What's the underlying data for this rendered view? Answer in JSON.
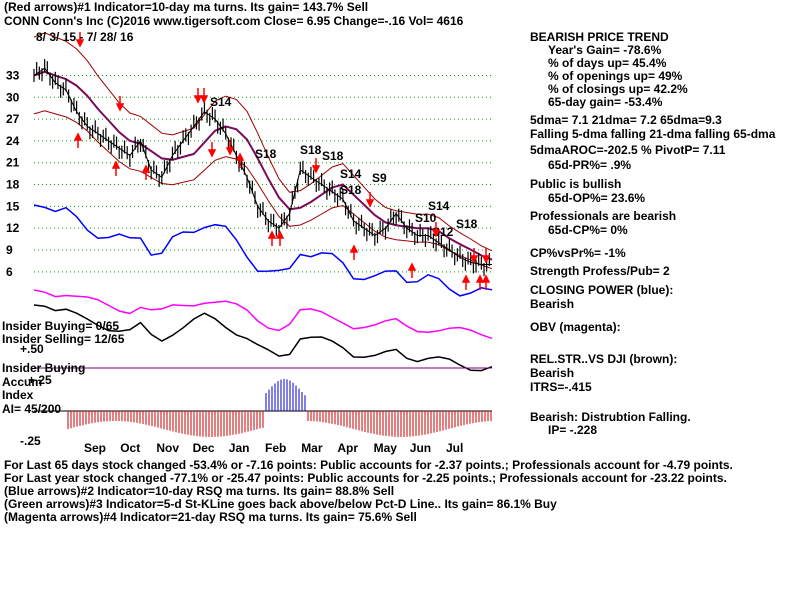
{
  "header": {
    "line1": "(Red arrows)#1 Indicator=10-day ma turns. Its gain= 143.7% Sell",
    "line2": "CONN   Conn's Inc  (C)2016 www.tigersoft.com      Close=  6.95  Change=-.16 Vol= 4616",
    "date_range": "8/ 3/ 15 - 7/ 28/ 16"
  },
  "side_panel": {
    "trend_title": "BEARISH PRICE TREND",
    "trend_stats": [
      "Year's Gain= -78.6%",
      "% of days up= 45.4%",
      "% of openings up= 49%",
      "% of closings up= 42.2%",
      "65-day gain= -53.4%"
    ],
    "ma_line": "5dma= 7.1 21dma= 7.2 65dma=9.3",
    "falling_line": "Falling 5-dma falling 21-dma falling 65-dma",
    "aroc_line": "5dmaAROC=-202.5 %  PivotP= 7.11",
    "pr_line": "65d-PR%= .9%",
    "public_title": "Public is bullish",
    "public_op": "65d-OP%= 23.6%",
    "prof_title": "Professionals are bearish",
    "prof_cp": "65d-CP%= 0%",
    "cpvspr": "CP%vsPr%= -1%",
    "strength": "Strength Profess/Pub= 2",
    "closing_power": "CLOSING POWER (blue):",
    "closing_power_val": "Bearish",
    "obv": "OBV (magenta):",
    "relstr": "REL.STR..VS DJI (brown):",
    "relstr_val": "Bearish",
    "itrs": "ITRS=-.415",
    "accum": "Bearish: Distrubtion Falling.",
    "ip": "IP= -.228"
  },
  "insider": {
    "buying": "Insider Buying= 0/65",
    "selling": "Insider Selling= 12/65",
    "buying_label": "Insider Buying",
    "accum_label1": "Accum",
    "accum_label2": "Index",
    "ai": "AI= 45/200",
    "scale_top": "+.50",
    "scale_mid": "+.25",
    "scale_bot": "-.25"
  },
  "footer": [
    "For Last 65 days stock changed -53.4% or -7.16 points:  Public accounts for -2.37 points.;  Professionals account for -4.79 points.",
    "For Last year stock changed -77.1% or -25.47 points:  Public accounts for -2.25 points.;  Professionals account for -23.22 points.",
    "(Blue arrows)#2 Indicator=10-day RSQ ma turns. Its gain= 88.8% Sell",
    "(Green arrows)#3 Indicator=5-d St-KLine goes back above/below Pct-D Line.. Its gain= 86.1% Buy",
    "(Magenta arrows)#4 Indicator=21-day RSQ ma turns. Its gain= 75.6% Sell"
  ],
  "signals": [
    "S14",
    "S18",
    "S18",
    "S14",
    "S18",
    "S9",
    "S14",
    "S10",
    "S12",
    "S18",
    "S18"
  ],
  "chart_data": {
    "type": "line",
    "y_ticks": [
      33,
      30,
      27,
      24,
      21,
      18,
      15,
      12,
      9,
      6
    ],
    "x_months": [
      "Sep",
      "Oct",
      "Nov",
      "Dec",
      "Jan",
      "Feb",
      "Mar",
      "Apr",
      "May",
      "Jun",
      "Jul"
    ],
    "ylim": [
      3.5,
      36.5
    ],
    "grid": true,
    "price": [
      33,
      34,
      32,
      31,
      28,
      26,
      25,
      24,
      23,
      22,
      24,
      20,
      19,
      22,
      24,
      26,
      28,
      27,
      25,
      22,
      19,
      15,
      13,
      12,
      14,
      20,
      19,
      18,
      17,
      16,
      13,
      12,
      11,
      12,
      14,
      12,
      11,
      11,
      10,
      9,
      8,
      7.3,
      7,
      7
    ],
    "colors": {
      "price": "#000000",
      "ma": "#7a0a5a",
      "bands": "#a00000",
      "closing_power": "#0000ff",
      "obv": "#ff00ff",
      "relstr": "#000000",
      "accum_pos": "#0000cc",
      "accum_neg": "#cc0000",
      "grid": "#00a000"
    }
  }
}
